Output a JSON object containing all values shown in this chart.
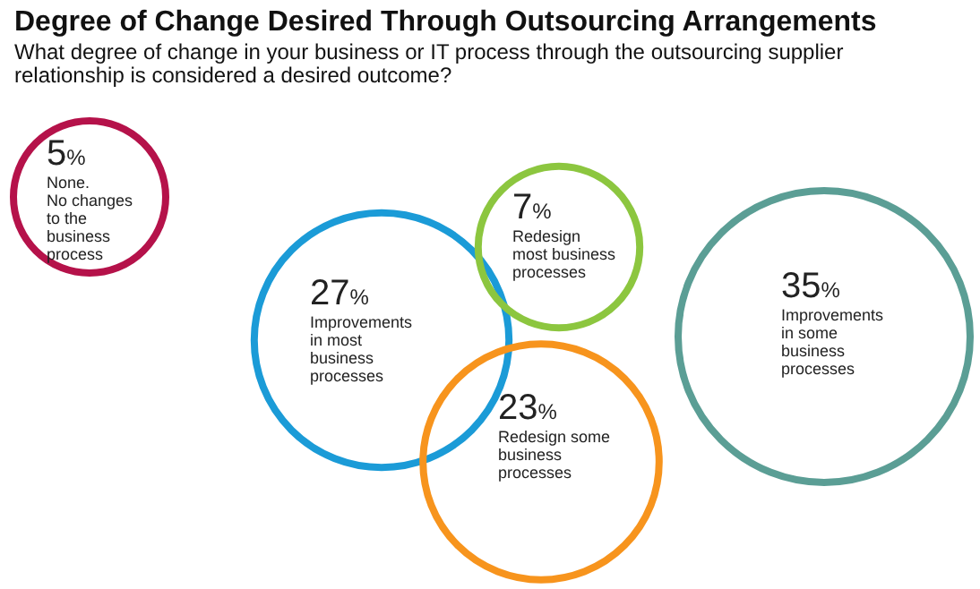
{
  "chart_data": {
    "type": "other",
    "title": "Degree of Change Desired Through Outsourcing Arrangements",
    "subtitle": "What degree of change in your business or IT process through the outsourcing supplier relationship is considered a desired outcome?",
    "categories": [
      "None.\nNo changes\nto the\nbusiness\nprocess",
      "Improvements\nin most\nbusiness\nprocesses",
      "Redesign\nmost business\nprocesses",
      "Redesign some\nbusiness\nprocesses",
      "Improvements\nin some\nbusiness\nprocesses"
    ],
    "values": [
      5,
      27,
      7,
      23,
      35
    ],
    "value_labels": [
      "5%",
      "27%",
      "7%",
      "23%",
      "35%"
    ],
    "colors": [
      "#b5124a",
      "#1b9bd7",
      "#8cc63f",
      "#f7941d",
      "#5b9e95"
    ]
  }
}
